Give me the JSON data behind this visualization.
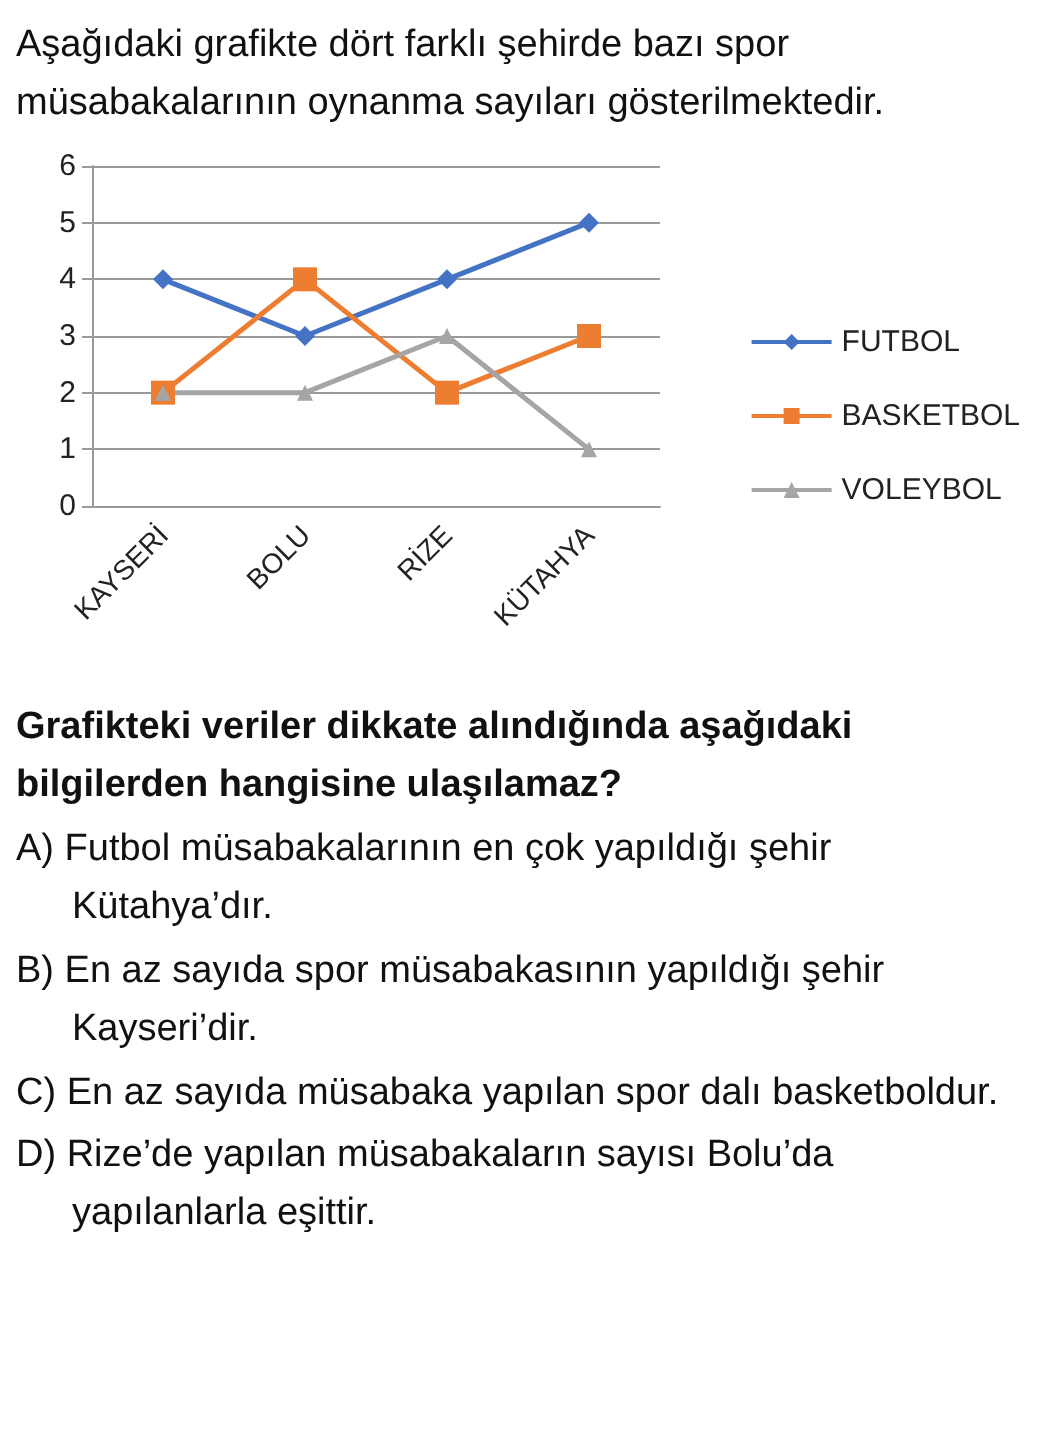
{
  "chart_data": {
    "type": "line",
    "title": "Aşağıdaki grafikte dört farklı şehirde bazı spor müsabakalarının oynanma sayıları gösterilmektedir.",
    "categories": [
      "KAYSERİ",
      "BOLU",
      "RİZE",
      "KÜTAHYA"
    ],
    "series": [
      {
        "name": "FUTBOL",
        "color": "#4472c4",
        "marker": "diamond",
        "values": [
          4,
          3,
          4,
          5
        ]
      },
      {
        "name": "BASKETBOL",
        "color": "#ed7d31",
        "marker": "square",
        "values": [
          2,
          4,
          2,
          3
        ]
      },
      {
        "name": "VOLEYBOL",
        "color": "#a5a5a5",
        "marker": "triangle",
        "values": [
          2,
          2,
          3,
          1
        ]
      }
    ],
    "ylim": [
      0,
      6
    ],
    "yticks": [
      0,
      1,
      2,
      3,
      4,
      5,
      6
    ],
    "grid": "y",
    "legend": "right",
    "line_style": "solid",
    "annotations": [
      "Grafikteki veriler dikkate alındığında aşağıdaki bilgilerden hangisine ulaşılamaz?",
      "A) Futbol müsabakalarının en çok yapıldığı şehir Kütahya’dır.",
      "B) En az sayıda spor müsabakasının yapıldığı şehir Kayseri’dir.",
      "C) En az sayıda müsabaka yapılan spor dalı basketboldur.",
      "D) Rize’de yapılan müsabakaların sayısı Bolu’da yapılanlarla eşittir."
    ]
  }
}
